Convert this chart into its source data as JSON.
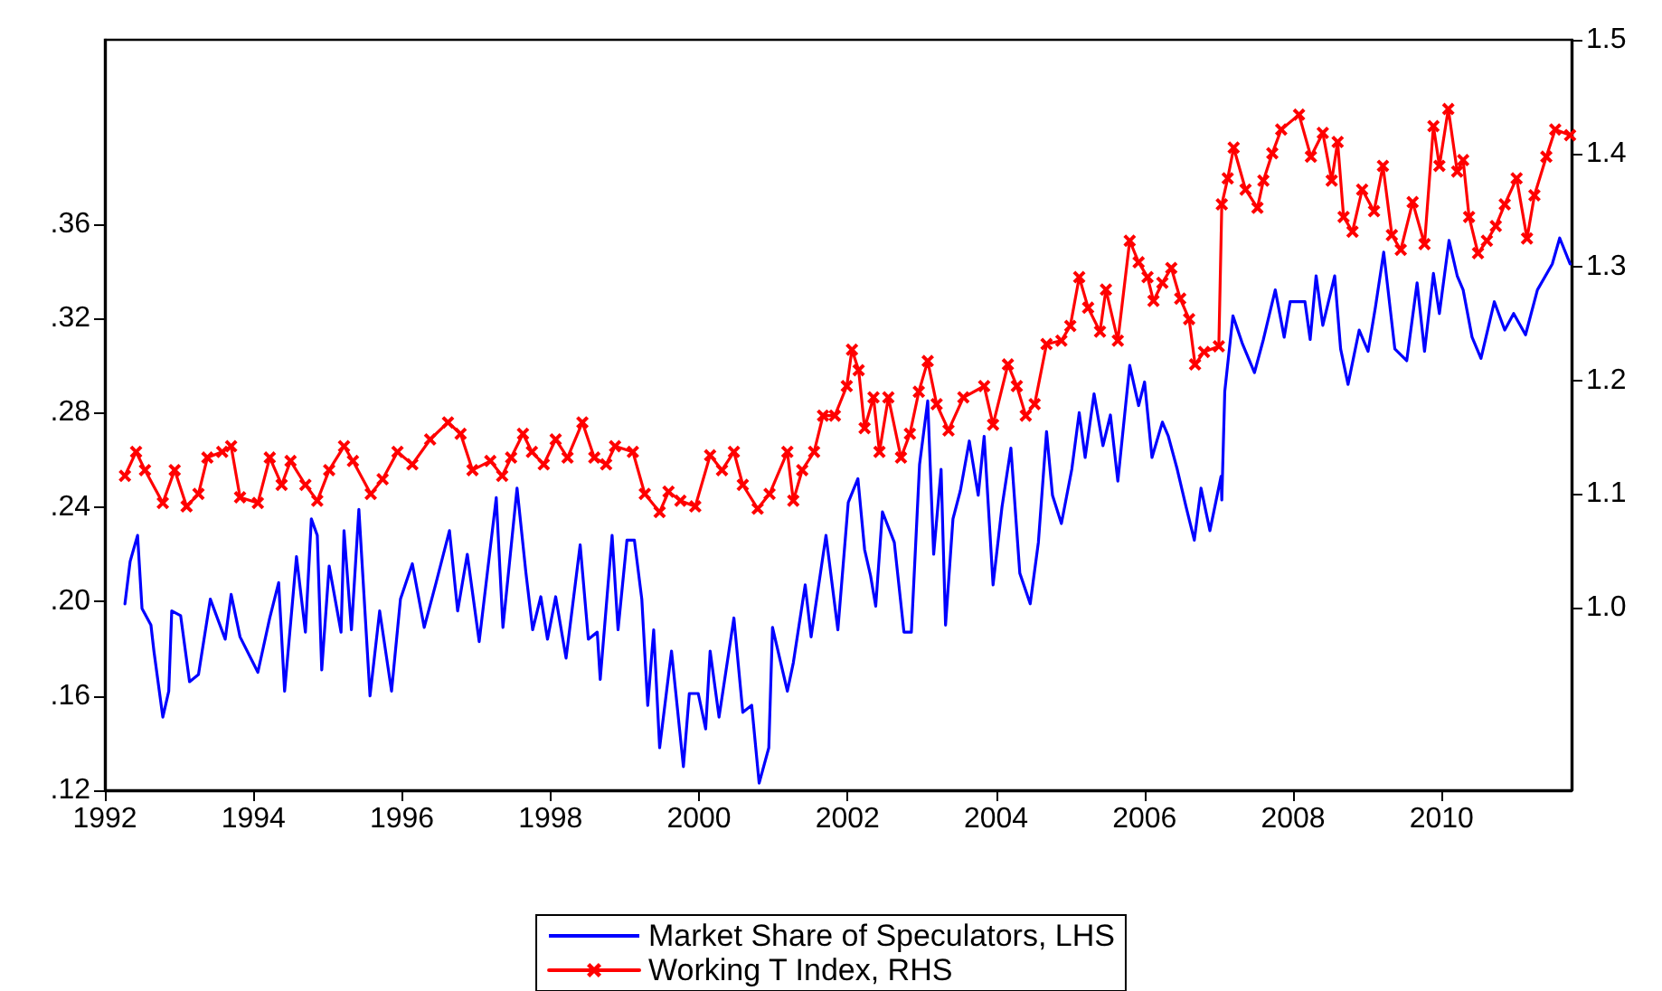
{
  "chart_data": {
    "type": "line",
    "legend": "bottom",
    "grid": false,
    "xlim": [
      1992.5,
      2012.25
    ],
    "xticks": [
      {
        "value": 1992.5,
        "label": "1992"
      },
      {
        "value": 1994.5,
        "label": "1994"
      },
      {
        "value": 1996.5,
        "label": "1996"
      },
      {
        "value": 1998.5,
        "label": "1998"
      },
      {
        "value": 2000.5,
        "label": "2000"
      },
      {
        "value": 2002.5,
        "label": "2002"
      },
      {
        "value": 2004.5,
        "label": "2004"
      },
      {
        "value": 2006.5,
        "label": "2006"
      },
      {
        "value": 2008.5,
        "label": "2008"
      },
      {
        "value": 2010.5,
        "label": "2010"
      }
    ],
    "ylim": [
      0.12,
      0.438
    ],
    "yticks": [
      {
        "value": 0.12,
        "label": ".12"
      },
      {
        "value": 0.16,
        "label": ".16"
      },
      {
        "value": 0.2,
        "label": ".20"
      },
      {
        "value": 0.24,
        "label": ".24"
      },
      {
        "value": 0.28,
        "label": ".28"
      },
      {
        "value": 0.32,
        "label": ".32"
      },
      {
        "value": 0.36,
        "label": ".36"
      }
    ],
    "y2lim": [
      0.839,
      1.5
    ],
    "y2ticks": [
      {
        "value": 1.0,
        "label": "1.0"
      },
      1.1,
      1.2,
      1.3,
      1.4,
      1.5
    ],
    "series": [
      {
        "name": "Market Share of Speculators, LHS",
        "color": "#0000ff",
        "marker": "none",
        "x": [
          1992.77,
          1992.84,
          1992.94,
          1993.0,
          1993.12,
          1993.16,
          1993.28,
          1993.36,
          1993.4,
          1993.52,
          1993.64,
          1993.76,
          1993.92,
          1994.12,
          1994.2,
          1994.32,
          1994.56,
          1994.72,
          1994.84,
          1994.92,
          1995.08,
          1995.2,
          1995.28,
          1995.36,
          1995.42,
          1995.52,
          1995.68,
          1995.72,
          1995.82,
          1995.92,
          1996.07,
          1996.2,
          1996.36,
          1996.48,
          1996.64,
          1996.8,
          1996.96,
          1997.14,
          1997.25,
          1997.38,
          1997.54,
          1997.77,
          1997.86,
          1998.05,
          1998.17,
          1998.26,
          1998.37,
          1998.46,
          1998.57,
          1998.71,
          1998.9,
          1999.01,
          1999.13,
          1999.17,
          1999.33,
          1999.41,
          1999.53,
          1999.63,
          1999.73,
          1999.81,
          1999.89,
          1999.97,
          2000.13,
          2000.29,
          2000.37,
          2000.49,
          2000.59,
          2000.65,
          2000.77,
          2000.97,
          2001.09,
          2001.21,
          2001.31,
          2001.44,
          2001.49,
          2001.69,
          2001.77,
          2001.93,
          2002.01,
          2002.21,
          2002.37,
          2002.51,
          2002.64,
          2002.73,
          2002.81,
          2002.88,
          2002.97,
          2003.13,
          2003.26,
          2003.36,
          2003.47,
          2003.58,
          2003.66,
          2003.76,
          2003.82,
          2003.92,
          2004.02,
          2004.14,
          2004.26,
          2004.34,
          2004.46,
          2004.58,
          2004.7,
          2004.82,
          2004.96,
          2005.07,
          2005.18,
          2005.26,
          2005.38,
          2005.52,
          2005.62,
          2005.7,
          2005.82,
          2005.94,
          2006.04,
          2006.14,
          2006.3,
          2006.42,
          2006.5,
          2006.6,
          2006.74,
          2006.82,
          2006.94,
          2007.06,
          2007.17,
          2007.26,
          2007.38,
          2007.53,
          2007.54,
          2007.58,
          2007.69,
          2007.82,
          2007.98,
          2008.1,
          2008.26,
          2008.38,
          2008.46,
          2008.66,
          2008.73,
          2008.81,
          2008.9,
          2009.06,
          2009.14,
          2009.24,
          2009.39,
          2009.51,
          2009.61,
          2009.72,
          2009.87,
          2010.03,
          2010.17,
          2010.27,
          2010.39,
          2010.47,
          2010.6,
          2010.71,
          2010.79,
          2010.91,
          2011.03,
          2011.21,
          2011.35,
          2011.47,
          2011.63,
          2011.79,
          2011.99,
          2012.09,
          2012.23
        ],
        "values": [
          0.199,
          0.217,
          0.228,
          0.197,
          0.19,
          0.179,
          0.151,
          0.162,
          0.196,
          0.194,
          0.166,
          0.169,
          0.201,
          0.184,
          0.203,
          0.185,
          0.17,
          0.193,
          0.208,
          0.162,
          0.219,
          0.187,
          0.235,
          0.228,
          0.171,
          0.215,
          0.187,
          0.23,
          0.188,
          0.239,
          0.16,
          0.196,
          0.162,
          0.201,
          0.216,
          0.189,
          0.208,
          0.23,
          0.196,
          0.22,
          0.183,
          0.244,
          0.189,
          0.248,
          0.212,
          0.188,
          0.202,
          0.184,
          0.202,
          0.176,
          0.224,
          0.184,
          0.187,
          0.167,
          0.228,
          0.188,
          0.226,
          0.226,
          0.201,
          0.156,
          0.188,
          0.138,
          0.179,
          0.13,
          0.161,
          0.161,
          0.146,
          0.179,
          0.151,
          0.193,
          0.153,
          0.156,
          0.123,
          0.138,
          0.189,
          0.162,
          0.174,
          0.207,
          0.185,
          0.228,
          0.188,
          0.242,
          0.252,
          0.222,
          0.211,
          0.198,
          0.238,
          0.225,
          0.187,
          0.187,
          0.258,
          0.285,
          0.22,
          0.256,
          0.19,
          0.235,
          0.247,
          0.268,
          0.245,
          0.27,
          0.207,
          0.24,
          0.265,
          0.212,
          0.199,
          0.225,
          0.272,
          0.245,
          0.233,
          0.256,
          0.28,
          0.261,
          0.288,
          0.266,
          0.279,
          0.251,
          0.3,
          0.283,
          0.293,
          0.261,
          0.276,
          0.27,
          0.256,
          0.24,
          0.226,
          0.248,
          0.23,
          0.253,
          0.243,
          0.289,
          0.321,
          0.309,
          0.297,
          0.311,
          0.332,
          0.312,
          0.327,
          0.327,
          0.311,
          0.338,
          0.317,
          0.338,
          0.307,
          0.292,
          0.315,
          0.306,
          0.325,
          0.348,
          0.307,
          0.302,
          0.335,
          0.306,
          0.339,
          0.322,
          0.353,
          0.338,
          0.332,
          0.312,
          0.303,
          0.327,
          0.315,
          0.322,
          0.313,
          0.332,
          0.343,
          0.354,
          0.343
        ]
      },
      {
        "name": "Working T Index, RHS",
        "color": "#ff0000",
        "marker": "cross",
        "axis": "y2",
        "x": [
          1992.77,
          1992.92,
          1993.04,
          1993.28,
          1993.44,
          1993.6,
          1993.76,
          1993.88,
          1994.08,
          1994.2,
          1994.32,
          1994.56,
          1994.72,
          1994.88,
          1995.0,
          1995.2,
          1995.36,
          1995.52,
          1995.72,
          1995.84,
          1996.08,
          1996.24,
          1996.44,
          1996.64,
          1996.88,
          1997.12,
          1997.29,
          1997.45,
          1997.69,
          1997.85,
          1997.97,
          1998.13,
          1998.25,
          1998.41,
          1998.57,
          1998.73,
          1998.93,
          1999.09,
          1999.25,
          1999.37,
          1999.61,
          1999.77,
          1999.97,
          2000.09,
          2000.25,
          2000.45,
          2000.65,
          2000.81,
          2000.97,
          2001.09,
          2001.29,
          2001.45,
          2001.69,
          2001.77,
          2001.89,
          2002.05,
          2002.17,
          2002.33,
          2002.49,
          2002.56,
          2002.65,
          2002.73,
          2002.85,
          2002.93,
          2003.05,
          2003.22,
          2003.34,
          2003.46,
          2003.58,
          2003.7,
          2003.86,
          2004.06,
          2004.34,
          2004.46,
          2004.66,
          2004.78,
          2004.9,
          2005.02,
          2005.18,
          2005.38,
          2005.5,
          2005.62,
          2005.74,
          2005.9,
          2005.98,
          2006.14,
          2006.3,
          2006.42,
          2006.54,
          2006.62,
          2006.74,
          2006.86,
          2006.98,
          2007.1,
          2007.18,
          2007.3,
          2007.5,
          2007.54,
          2007.62,
          2007.7,
          2007.86,
          2008.02,
          2008.1,
          2008.22,
          2008.34,
          2008.58,
          2008.74,
          2008.9,
          2009.02,
          2009.1,
          2009.18,
          2009.3,
          2009.43,
          2009.59,
          2009.71,
          2009.83,
          2009.95,
          2010.11,
          2010.27,
          2010.39,
          2010.47,
          2010.59,
          2010.71,
          2010.79,
          2010.87,
          2010.99,
          2011.11,
          2011.23,
          2011.35,
          2011.51,
          2011.65,
          2011.75,
          2011.91,
          2012.03,
          2012.23
        ],
        "values": [
          1.116,
          1.137,
          1.121,
          1.092,
          1.121,
          1.089,
          1.1,
          1.132,
          1.137,
          1.142,
          1.097,
          1.092,
          1.132,
          1.108,
          1.129,
          1.108,
          1.094,
          1.121,
          1.142,
          1.129,
          1.1,
          1.113,
          1.137,
          1.126,
          1.148,
          1.163,
          1.153,
          1.121,
          1.129,
          1.116,
          1.132,
          1.153,
          1.137,
          1.126,
          1.148,
          1.132,
          1.163,
          1.132,
          1.126,
          1.142,
          1.137,
          1.1,
          1.084,
          1.102,
          1.094,
          1.089,
          1.134,
          1.121,
          1.137,
          1.108,
          1.087,
          1.1,
          1.137,
          1.094,
          1.121,
          1.137,
          1.169,
          1.169,
          1.195,
          1.227,
          1.209,
          1.158,
          1.185,
          1.137,
          1.185,
          1.132,
          1.153,
          1.19,
          1.217,
          1.179,
          1.156,
          1.185,
          1.195,
          1.161,
          1.214,
          1.195,
          1.169,
          1.179,
          1.232,
          1.235,
          1.248,
          1.291,
          1.264,
          1.243,
          1.28,
          1.235,
          1.323,
          1.304,
          1.291,
          1.27,
          1.286,
          1.299,
          1.272,
          1.254,
          1.214,
          1.225,
          1.23,
          1.355,
          1.378,
          1.405,
          1.368,
          1.352,
          1.376,
          1.4,
          1.421,
          1.434,
          1.397,
          1.418,
          1.376,
          1.41,
          1.344,
          1.331,
          1.368,
          1.349,
          1.389,
          1.328,
          1.315,
          1.357,
          1.32,
          1.424,
          1.389,
          1.439,
          1.384,
          1.394,
          1.344,
          1.312,
          1.323,
          1.336,
          1.355,
          1.378,
          1.325,
          1.363,
          1.397,
          1.421,
          1.416
        ]
      }
    ]
  }
}
